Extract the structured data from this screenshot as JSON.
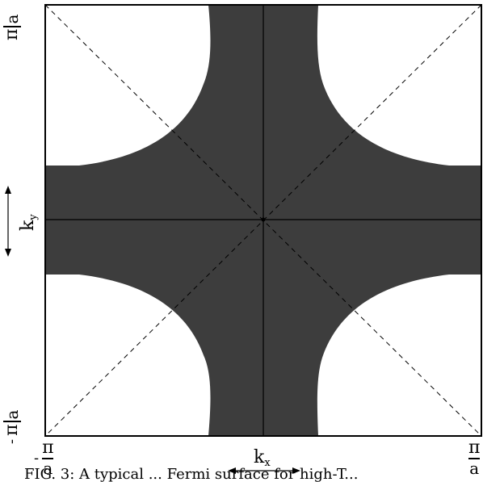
{
  "figure": {
    "ky_label": "k",
    "ky_sub": "y",
    "kx_label": "k",
    "kx_sub": "x",
    "pi": "π",
    "a": "a",
    "minus": "-",
    "caption": "FIG. 3: A typical ... Fermi surface for high-T..."
  },
  "colors": {
    "filled_region": "#3d3d3d",
    "lines": "#000000",
    "background": "#ffffff"
  }
}
